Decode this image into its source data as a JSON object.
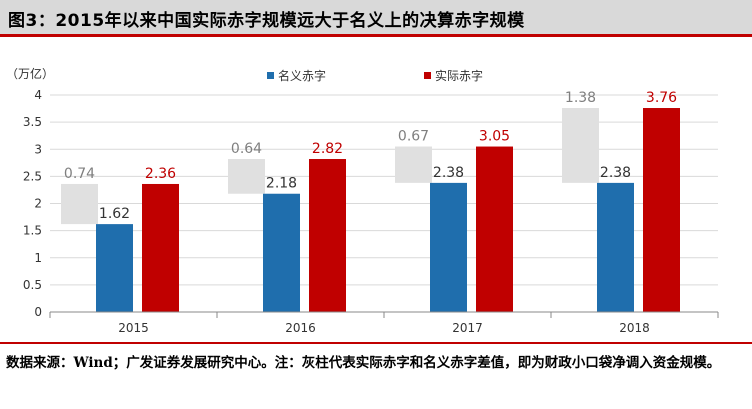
{
  "title": "图3：2015年以来中国实际赤字规模远大于名义上的决算赤字规模",
  "footnote": "数据来源：Wind；广发证券发展研究中心。注：灰柱代表实际赤字和名义赤字差值，即为财政小口袋净调入资金规模。",
  "colors": {
    "nominal": "#1f6ead",
    "actual": "#c00000",
    "gap": "#e0e0e0",
    "gap_label": "#7f7f7f",
    "title_bg": "#d9d9d9",
    "rule": "#c00000"
  },
  "chart_data": {
    "type": "bar",
    "title": "",
    "ylabel": "（万亿）",
    "ylim": [
      0,
      4
    ],
    "yticks": [
      "0",
      "0.5",
      "1",
      "1.5",
      "2",
      "2.5",
      "3",
      "3.5",
      "4"
    ],
    "categories": [
      "2015",
      "2016",
      "2017",
      "2018"
    ],
    "legend": [
      "名义赤字",
      "实际赤字"
    ],
    "series": [
      {
        "name": "名义赤字",
        "values": [
          1.62,
          2.18,
          2.38,
          2.38
        ],
        "labels": [
          "1.62",
          "2.18",
          "2.38",
          "2.38"
        ]
      },
      {
        "name": "实际赤字",
        "values": [
          2.36,
          2.82,
          3.05,
          3.76
        ],
        "labels": [
          "2.36",
          "2.82",
          "3.05",
          "3.76"
        ]
      },
      {
        "name": "差值",
        "values": [
          0.74,
          0.64,
          0.67,
          1.38
        ],
        "labels": [
          "0.74",
          "0.64",
          "0.67",
          "1.38"
        ]
      }
    ]
  }
}
